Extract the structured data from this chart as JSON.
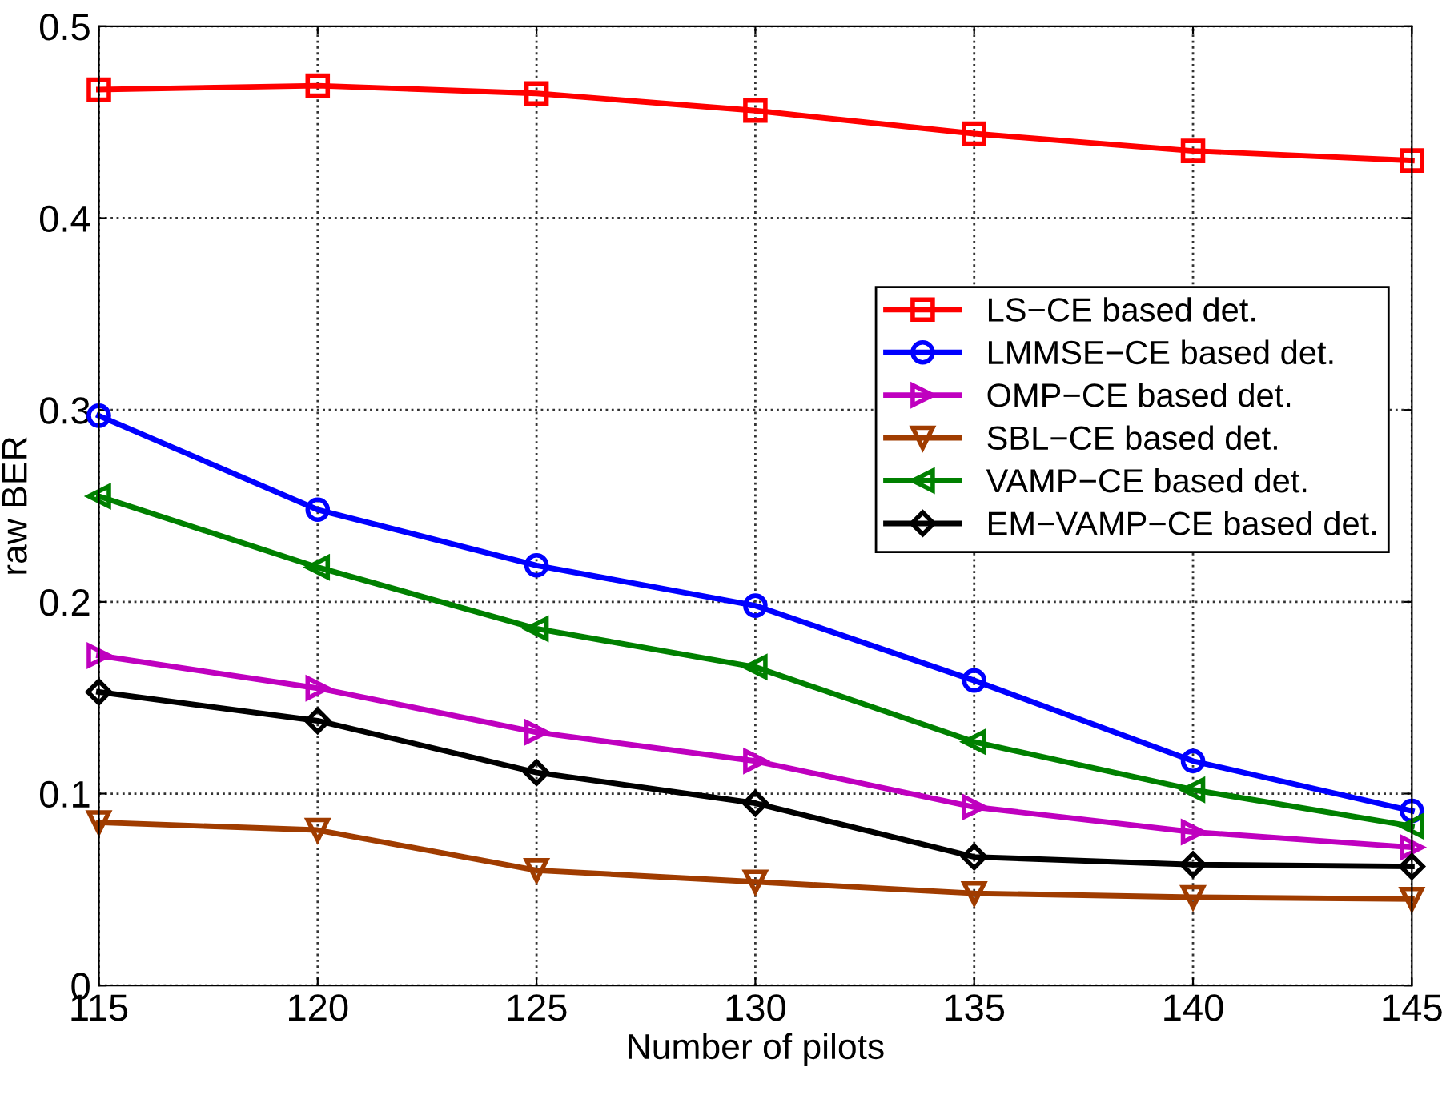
{
  "chart_data": {
    "type": "line",
    "xlabel": "Number of pilots",
    "ylabel": "raw BER",
    "x": [
      115,
      120,
      125,
      130,
      135,
      140,
      145
    ],
    "xlim": [
      115,
      145
    ],
    "xticks": [
      115,
      120,
      125,
      130,
      135,
      140,
      145
    ],
    "ylim": [
      0,
      0.5
    ],
    "yticks": [
      0,
      0.1,
      0.2,
      0.3,
      0.4,
      0.5
    ],
    "grid": true,
    "legend": "right",
    "line_style": "solid",
    "series": [
      {
        "name": "LS−CE based det.",
        "color": "#ff0000",
        "marker": "square",
        "values": [
          0.467,
          0.469,
          0.465,
          0.456,
          0.444,
          0.435,
          0.43
        ]
      },
      {
        "name": "LMMSE−CE based det.",
        "color": "#0000ff",
        "marker": "circle",
        "values": [
          0.297,
          0.248,
          0.219,
          0.198,
          0.159,
          0.117,
          0.091
        ]
      },
      {
        "name": "OMP−CE based det.",
        "color": "#bf00bf",
        "marker": "triangle_right",
        "values": [
          0.172,
          0.155,
          0.132,
          0.117,
          0.093,
          0.08,
          0.072
        ]
      },
      {
        "name": "SBL−CE based det.",
        "color": "#a03c00",
        "marker": "triangle_down",
        "values": [
          0.085,
          0.081,
          0.06,
          0.054,
          0.048,
          0.046,
          0.045
        ]
      },
      {
        "name": "VAMP−CE based det.",
        "color": "#008000",
        "marker": "triangle_left",
        "values": [
          0.255,
          0.218,
          0.186,
          0.166,
          0.127,
          0.102,
          0.083
        ]
      },
      {
        "name": "EM−VAMP−CE based det.",
        "color": "#000000",
        "marker": "diamond",
        "values": [
          0.153,
          0.138,
          0.111,
          0.095,
          0.067,
          0.063,
          0.062
        ]
      }
    ]
  }
}
